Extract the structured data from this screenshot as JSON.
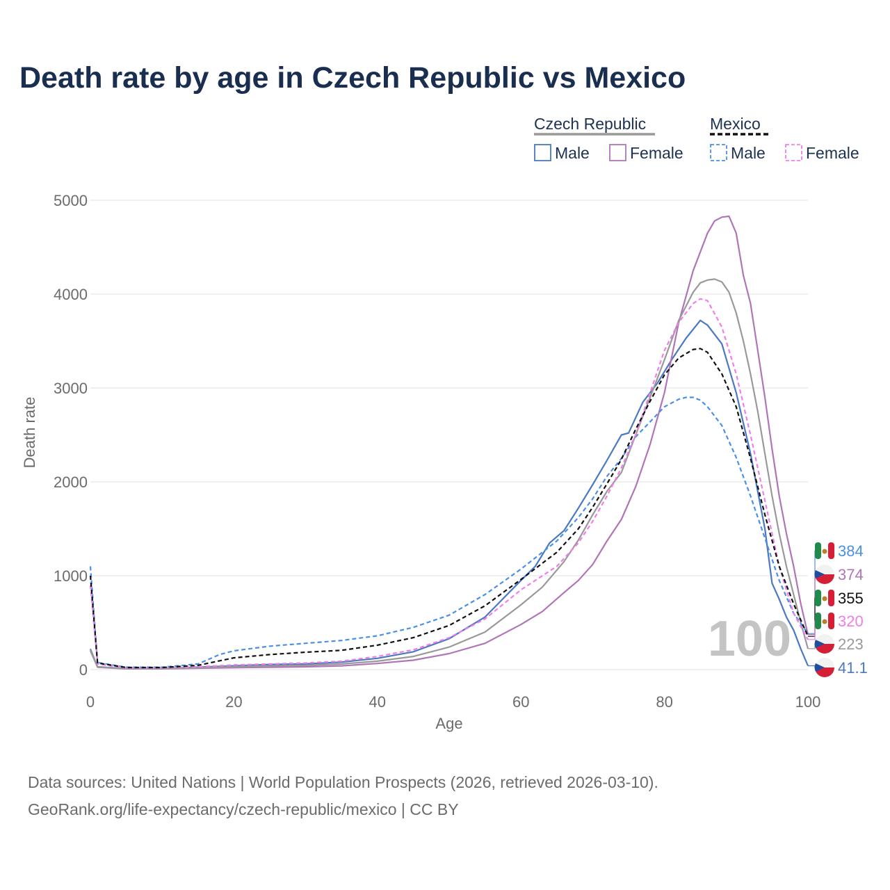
{
  "title": "Death rate by age in Czech Republic vs Mexico",
  "sources": {
    "line1": "Data sources: United Nations | World Population Prospects (2026, retrieved 2026-03-10).",
    "line2": "GeoRank.org/life-expectancy/czech-republic/mexico | CC BY"
  },
  "chart_data": {
    "type": "line",
    "xlabel": "Age",
    "ylabel": "Death rate",
    "xlim": [
      0,
      100
    ],
    "ylim": [
      0,
      5000
    ],
    "x_ticks": [
      0,
      20,
      40,
      60,
      80,
      100
    ],
    "y_ticks": [
      0,
      1000,
      2000,
      3000,
      4000,
      5000
    ],
    "grid": true,
    "annotation": "100",
    "legend": {
      "placement": "top-right",
      "groups": [
        {
          "country": "Czech Republic",
          "style": "solid",
          "color": "#999999",
          "items": [
            {
              "label": "Male",
              "color": "#4a78c2"
            },
            {
              "label": "Female",
              "color": "#b174b8"
            }
          ]
        },
        {
          "country": "Mexico",
          "style": "dashed",
          "color": "#111111",
          "items": [
            {
              "label": "Male",
              "color": "#4a8fe8"
            },
            {
              "label": "Female",
              "color": "#f07ee9"
            }
          ]
        }
      ]
    },
    "series": [
      {
        "name": "Czech Republic Male",
        "country": "Czech Republic",
        "sex": "Male",
        "color": "#4a78c2",
        "dash": false,
        "points": [
          [
            0,
            220
          ],
          [
            1,
            30
          ],
          [
            5,
            10
          ],
          [
            10,
            12
          ],
          [
            15,
            25
          ],
          [
            20,
            40
          ],
          [
            25,
            55
          ],
          [
            30,
            60
          ],
          [
            35,
            80
          ],
          [
            40,
            120
          ],
          [
            45,
            190
          ],
          [
            50,
            330
          ],
          [
            55,
            560
          ],
          [
            60,
            950
          ],
          [
            62,
            1100
          ],
          [
            64,
            1350
          ],
          [
            66,
            1480
          ],
          [
            68,
            1720
          ],
          [
            70,
            1970
          ],
          [
            72,
            2230
          ],
          [
            74,
            2500
          ],
          [
            75,
            2520
          ],
          [
            77,
            2850
          ],
          [
            79,
            3050
          ],
          [
            81,
            3300
          ],
          [
            83,
            3530
          ],
          [
            85,
            3720
          ],
          [
            86,
            3670
          ],
          [
            88,
            3470
          ],
          [
            90,
            2950
          ],
          [
            92,
            2300
          ],
          [
            94,
            1500
          ],
          [
            95,
            920
          ],
          [
            96,
            750
          ],
          [
            97,
            560
          ],
          [
            98,
            420
          ],
          [
            99,
            220
          ],
          [
            100,
            41.1
          ]
        ]
      },
      {
        "name": "Czech Republic Female",
        "country": "Czech Republic",
        "sex": "Female",
        "color": "#b174b8",
        "dash": false,
        "points": [
          [
            0,
            200
          ],
          [
            1,
            25
          ],
          [
            5,
            8
          ],
          [
            10,
            8
          ],
          [
            15,
            15
          ],
          [
            20,
            20
          ],
          [
            25,
            25
          ],
          [
            30,
            30
          ],
          [
            35,
            40
          ],
          [
            40,
            65
          ],
          [
            45,
            100
          ],
          [
            50,
            170
          ],
          [
            55,
            280
          ],
          [
            60,
            480
          ],
          [
            63,
            620
          ],
          [
            66,
            820
          ],
          [
            68,
            950
          ],
          [
            70,
            1120
          ],
          [
            72,
            1370
          ],
          [
            74,
            1600
          ],
          [
            76,
            1950
          ],
          [
            78,
            2400
          ],
          [
            80,
            2950
          ],
          [
            82,
            3700
          ],
          [
            84,
            4250
          ],
          [
            86,
            4650
          ],
          [
            87,
            4780
          ],
          [
            88,
            4820
          ],
          [
            89,
            4830
          ],
          [
            90,
            4650
          ],
          [
            91,
            4200
          ],
          [
            92,
            3900
          ],
          [
            93,
            3400
          ],
          [
            94,
            2900
          ],
          [
            95,
            2350
          ],
          [
            96,
            1850
          ],
          [
            97,
            1450
          ],
          [
            98,
            1100
          ],
          [
            99,
            700
          ],
          [
            100,
            374
          ]
        ]
      },
      {
        "name": "Czech Republic Total",
        "country": "Czech Republic",
        "sex": "Total",
        "color": "#999999",
        "dash": false,
        "points": [
          [
            0,
            210
          ],
          [
            1,
            28
          ],
          [
            5,
            9
          ],
          [
            10,
            10
          ],
          [
            15,
            20
          ],
          [
            20,
            30
          ],
          [
            25,
            40
          ],
          [
            30,
            45
          ],
          [
            35,
            60
          ],
          [
            40,
            90
          ],
          [
            45,
            140
          ],
          [
            50,
            240
          ],
          [
            55,
            400
          ],
          [
            60,
            690
          ],
          [
            63,
            880
          ],
          [
            66,
            1150
          ],
          [
            68,
            1380
          ],
          [
            70,
            1650
          ],
          [
            72,
            1900
          ],
          [
            74,
            2100
          ],
          [
            76,
            2500
          ],
          [
            78,
            2900
          ],
          [
            80,
            3300
          ],
          [
            82,
            3720
          ],
          [
            84,
            4020
          ],
          [
            85,
            4120
          ],
          [
            86,
            4150
          ],
          [
            87,
            4160
          ],
          [
            88,
            4130
          ],
          [
            89,
            4020
          ],
          [
            90,
            3800
          ],
          [
            91,
            3500
          ],
          [
            92,
            3150
          ],
          [
            93,
            2750
          ],
          [
            94,
            2300
          ],
          [
            95,
            1850
          ],
          [
            96,
            1450
          ],
          [
            97,
            1100
          ],
          [
            98,
            800
          ],
          [
            99,
            500
          ],
          [
            100,
            223
          ]
        ]
      },
      {
        "name": "Mexico Male",
        "country": "Mexico",
        "sex": "Male",
        "color": "#4a8fe8",
        "dash": true,
        "points": [
          [
            0,
            1100
          ],
          [
            1,
            75
          ],
          [
            5,
            25
          ],
          [
            10,
            25
          ],
          [
            15,
            60
          ],
          [
            18,
            160
          ],
          [
            20,
            200
          ],
          [
            25,
            250
          ],
          [
            30,
            280
          ],
          [
            35,
            310
          ],
          [
            40,
            360
          ],
          [
            45,
            450
          ],
          [
            50,
            580
          ],
          [
            55,
            800
          ],
          [
            60,
            1070
          ],
          [
            65,
            1370
          ],
          [
            68,
            1620
          ],
          [
            70,
            1820
          ],
          [
            72,
            2060
          ],
          [
            74,
            2250
          ],
          [
            76,
            2480
          ],
          [
            78,
            2640
          ],
          [
            80,
            2800
          ],
          [
            82,
            2880
          ],
          [
            83,
            2900
          ],
          [
            84,
            2900
          ],
          [
            85,
            2870
          ],
          [
            86,
            2800
          ],
          [
            88,
            2600
          ],
          [
            90,
            2260
          ],
          [
            92,
            1850
          ],
          [
            94,
            1400
          ],
          [
            96,
            950
          ],
          [
            98,
            600
          ],
          [
            100,
            384
          ]
        ]
      },
      {
        "name": "Mexico Female",
        "country": "Mexico",
        "sex": "Female",
        "color": "#f07ee9",
        "dash": true,
        "points": [
          [
            0,
            900
          ],
          [
            1,
            60
          ],
          [
            5,
            18
          ],
          [
            10,
            18
          ],
          [
            15,
            30
          ],
          [
            20,
            50
          ],
          [
            25,
            60
          ],
          [
            30,
            70
          ],
          [
            35,
            90
          ],
          [
            40,
            140
          ],
          [
            45,
            210
          ],
          [
            50,
            340
          ],
          [
            55,
            540
          ],
          [
            60,
            850
          ],
          [
            65,
            1100
          ],
          [
            68,
            1350
          ],
          [
            70,
            1580
          ],
          [
            72,
            1850
          ],
          [
            74,
            2150
          ],
          [
            76,
            2500
          ],
          [
            78,
            2950
          ],
          [
            80,
            3400
          ],
          [
            82,
            3700
          ],
          [
            84,
            3900
          ],
          [
            85,
            3950
          ],
          [
            86,
            3930
          ],
          [
            88,
            3650
          ],
          [
            90,
            3150
          ],
          [
            92,
            2500
          ],
          [
            94,
            1800
          ],
          [
            96,
            1100
          ],
          [
            98,
            600
          ],
          [
            100,
            320
          ]
        ]
      },
      {
        "name": "Mexico Total",
        "country": "Mexico",
        "sex": "Total",
        "color": "#111111",
        "dash": true,
        "points": [
          [
            0,
            1000
          ],
          [
            1,
            70
          ],
          [
            5,
            22
          ],
          [
            10,
            22
          ],
          [
            15,
            45
          ],
          [
            20,
            125
          ],
          [
            25,
            160
          ],
          [
            30,
            185
          ],
          [
            35,
            205
          ],
          [
            40,
            260
          ],
          [
            45,
            340
          ],
          [
            50,
            470
          ],
          [
            55,
            680
          ],
          [
            60,
            960
          ],
          [
            65,
            1250
          ],
          [
            68,
            1500
          ],
          [
            70,
            1730
          ],
          [
            72,
            1980
          ],
          [
            74,
            2240
          ],
          [
            76,
            2560
          ],
          [
            78,
            2860
          ],
          [
            80,
            3140
          ],
          [
            82,
            3320
          ],
          [
            84,
            3410
          ],
          [
            85,
            3420
          ],
          [
            86,
            3380
          ],
          [
            88,
            3150
          ],
          [
            90,
            2800
          ],
          [
            92,
            2250
          ],
          [
            94,
            1650
          ],
          [
            96,
            1100
          ],
          [
            98,
            700
          ],
          [
            100,
            355
          ]
        ]
      }
    ],
    "end_labels": [
      {
        "value": "384",
        "country": "Mexico",
        "color": "#4a8fe8"
      },
      {
        "value": "374",
        "country": "Czech Republic",
        "color": "#b174b8"
      },
      {
        "value": "355",
        "country": "Mexico",
        "color": "#111111"
      },
      {
        "value": "320",
        "country": "Mexico",
        "color": "#f07ee9"
      },
      {
        "value": "223",
        "country": "Czech Republic",
        "color": "#999999"
      },
      {
        "value": "41.1",
        "country": "Czech Republic",
        "color": "#4a78c2"
      }
    ]
  }
}
